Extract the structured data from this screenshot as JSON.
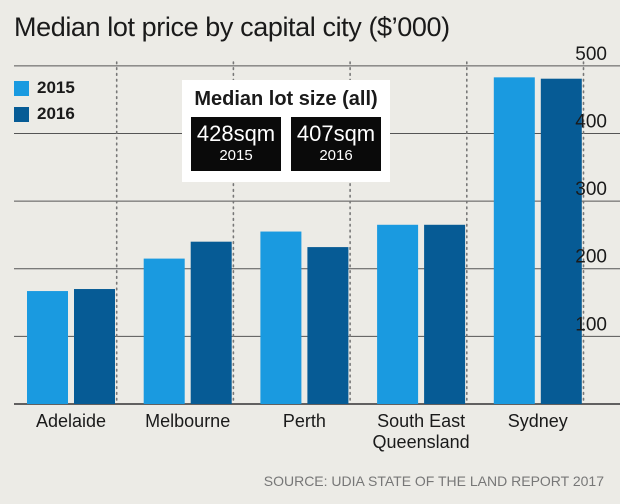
{
  "chart_data": {
    "type": "bar",
    "title": "Median lot price by capital city ($’000)",
    "categories": [
      "Adelaide",
      "Melbourne",
      "Perth",
      "South East Queensland",
      "Sydney"
    ],
    "series": [
      {
        "name": "2015",
        "values": [
          167,
          215,
          255,
          265,
          483
        ]
      },
      {
        "name": "2016",
        "values": [
          170,
          240,
          232,
          265,
          481
        ]
      }
    ],
    "ylim": [
      0,
      520
    ],
    "yticks": [
      100,
      200,
      300,
      400,
      500
    ],
    "grid": true,
    "legend": "top-left",
    "source": "SOURCE: UDIA STATE OF THE LAND REPORT 2017",
    "colors": {
      "2015": "#1a9ae0",
      "2016": "#065b95",
      "grid": "#444444",
      "background": "#ecebe6"
    }
  },
  "annotation": {
    "title": "Median lot size (all)",
    "cards": [
      {
        "value": "428sqm",
        "year": "2015"
      },
      {
        "value": "407sqm",
        "year": "2016"
      }
    ]
  }
}
